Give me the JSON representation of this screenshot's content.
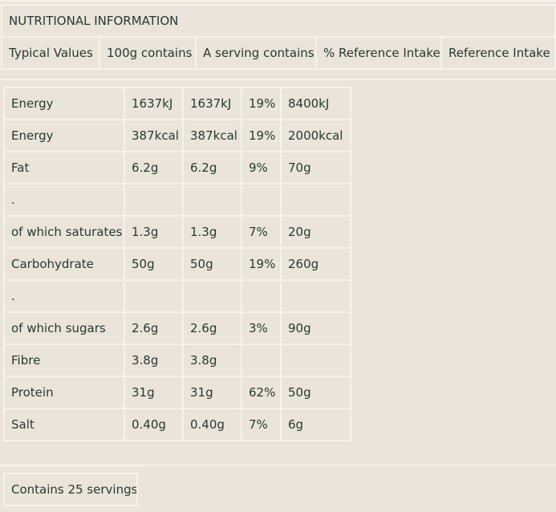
{
  "header": {
    "title": "NUTRITIONAL INFORMATION",
    "columns": [
      "Typical Values",
      "100g contains",
      "A serving contains",
      "% Reference Intake",
      "Reference Intake"
    ]
  },
  "table": {
    "rows": [
      [
        "Energy",
        "1637kJ",
        "1637kJ",
        "19%",
        "8400kJ"
      ],
      [
        "Energy",
        "387kcal",
        "387kcal",
        "19%",
        "2000kcal"
      ],
      [
        "Fat",
        "6.2g",
        "6.2g",
        "9%",
        "70g"
      ],
      [
        "."
      ],
      [
        "of which saturates",
        "1.3g",
        "1.3g",
        "7%",
        "20g"
      ],
      [
        "Carbohydrate",
        "50g",
        "50g",
        "19%",
        "260g"
      ],
      [
        "."
      ],
      [
        "of which sugars",
        "2.6g",
        "2.6g",
        "3%",
        "90g"
      ],
      [
        "Fibre",
        "3.8g",
        "3.8g"
      ],
      [
        "Protein",
        "31g",
        "31g",
        "62%",
        "50g"
      ],
      [
        "Salt",
        "0.40g",
        "0.40g",
        "7%",
        "6g"
      ]
    ]
  },
  "footer": {
    "text": "Contains 25 servings"
  }
}
